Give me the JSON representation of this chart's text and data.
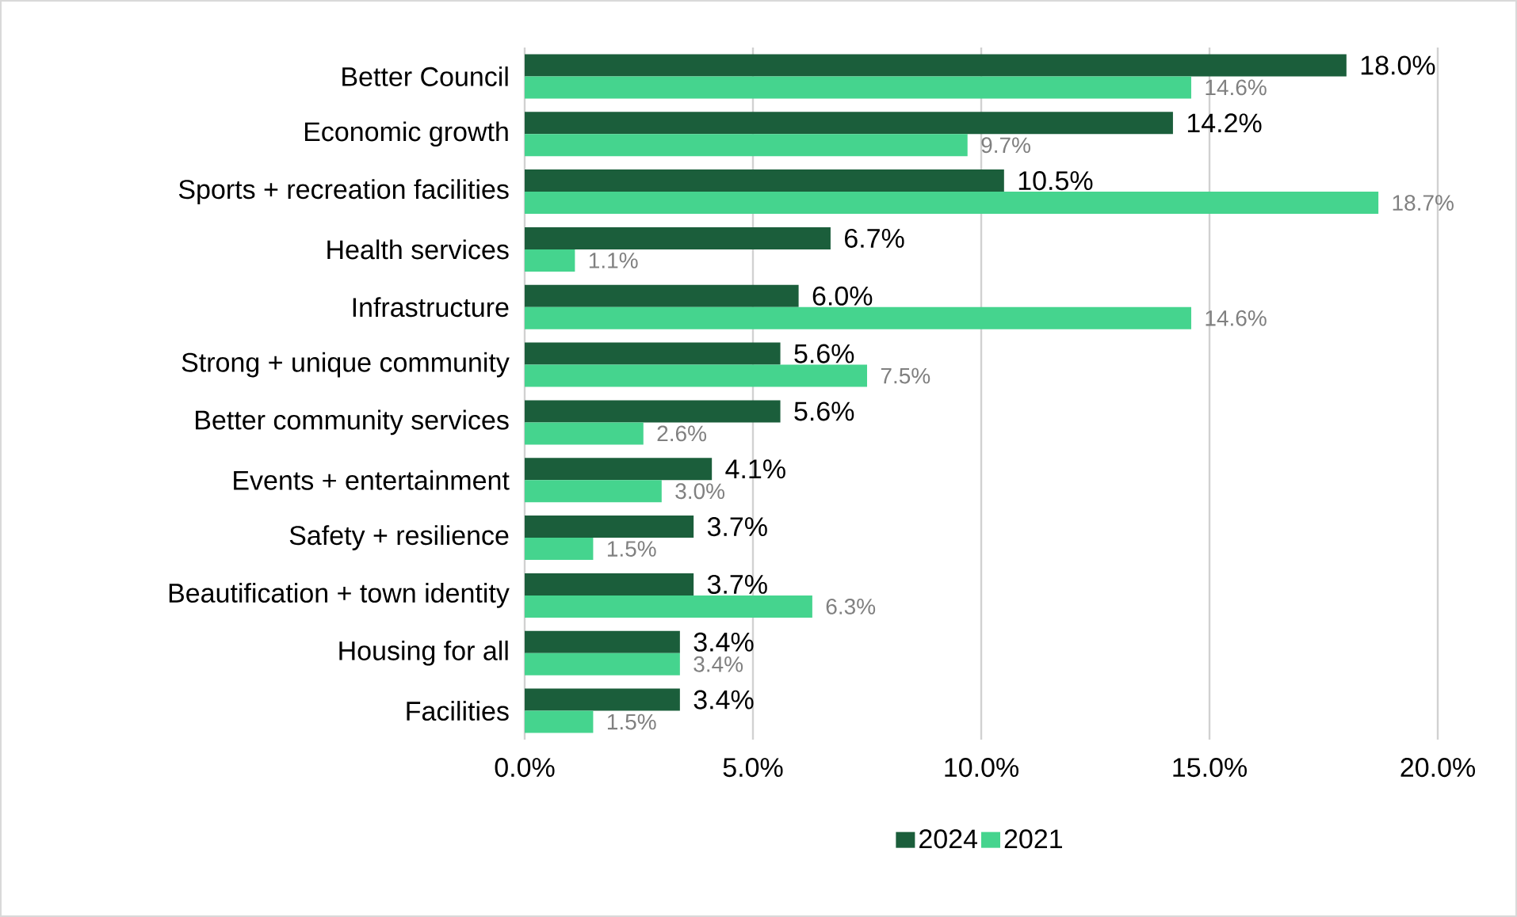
{
  "chart_data": {
    "type": "bar",
    "orientation": "horizontal",
    "categories": [
      "Better Council",
      "Economic growth",
      "Sports + recreation facilities",
      "Health services",
      "Infrastructure",
      "Strong + unique community",
      "Better community services",
      "Events + entertainment",
      "Safety + resilience",
      "Beautification + town identity",
      "Housing for all",
      "Facilities"
    ],
    "series": [
      {
        "name": "2024",
        "color": "#1b5e3b",
        "values": [
          18.0,
          14.2,
          10.5,
          6.7,
          6.0,
          5.6,
          5.6,
          4.1,
          3.7,
          3.7,
          3.4,
          3.4
        ],
        "value_labels": [
          "18.0%",
          "14.2%",
          "10.5%",
          "6.7%",
          "6.0%",
          "5.6%",
          "5.6%",
          "4.1%",
          "3.7%",
          "3.7%",
          "3.4%",
          "3.4%"
        ]
      },
      {
        "name": "2021",
        "color": "#45d48e",
        "values": [
          14.6,
          9.7,
          18.7,
          1.1,
          14.6,
          7.5,
          2.6,
          3.0,
          1.5,
          6.3,
          3.4,
          1.5
        ],
        "value_labels": [
          "14.6%",
          "9.7%",
          "18.7%",
          "1.1%",
          "14.6%",
          "7.5%",
          "2.6%",
          "3.0%",
          "1.5%",
          "6.3%",
          "3.4%",
          "1.5%"
        ]
      }
    ],
    "xlim": [
      0,
      20
    ],
    "xticks": [
      {
        "value": 0,
        "label": "0.0%"
      },
      {
        "value": 5,
        "label": "5.0%"
      },
      {
        "value": 10,
        "label": "10.0%"
      },
      {
        "value": 15,
        "label": "15.0%"
      },
      {
        "value": 20,
        "label": "20.0%"
      }
    ],
    "grid": "x",
    "legend": "bottom"
  }
}
